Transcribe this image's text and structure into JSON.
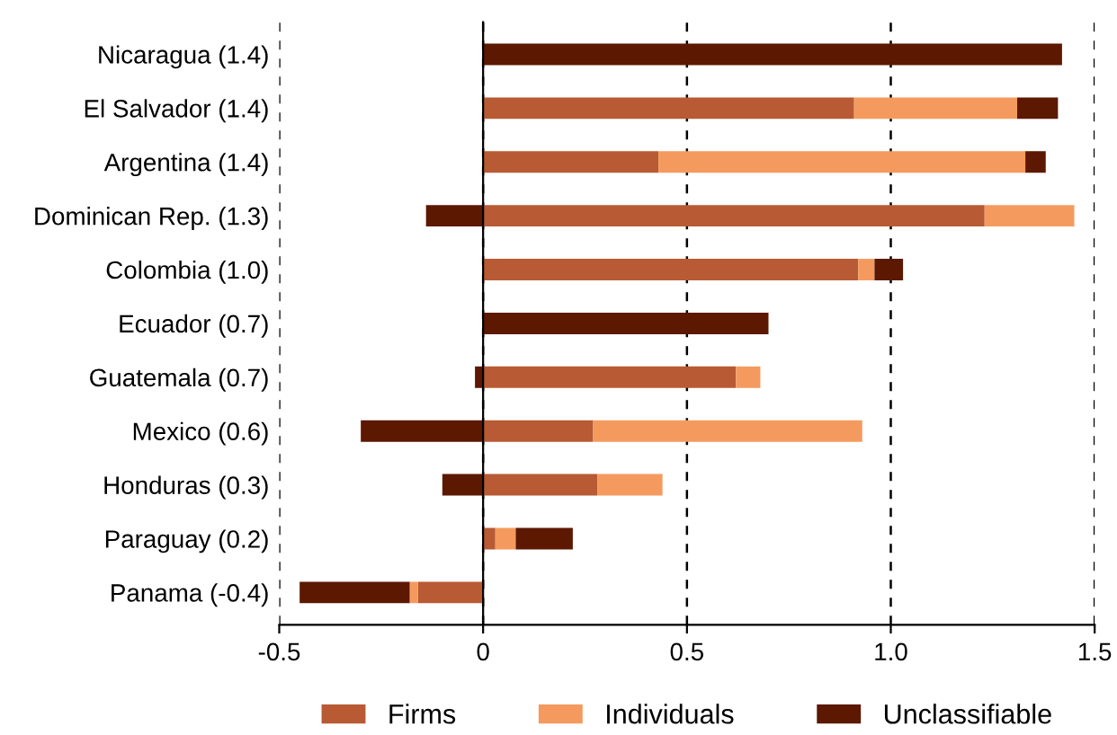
{
  "chart_data": {
    "type": "bar",
    "orientation": "horizontal",
    "stacked": true,
    "categories": [
      "Nicaragua (1.4)",
      "El Salvador (1.4)",
      "Argentina (1.4)",
      "Dominican Rep. (1.3)",
      "Colombia (1.0)",
      "Ecuador (0.7)",
      "Guatemala (0.7)",
      "Mexico (0.6)",
      "Honduras (0.3)",
      "Paraguay (0.2)",
      "Panama (-0.4)"
    ],
    "series": [
      {
        "name": "Firms",
        "color": "#b85a33",
        "values": [
          0,
          0.91,
          0.43,
          1.23,
          0.92,
          0,
          0.62,
          0.27,
          0.28,
          0.03,
          -0.16
        ]
      },
      {
        "name": "Individuals",
        "color": "#f59a5e",
        "values": [
          0,
          0.4,
          0.9,
          0.22,
          0.04,
          0,
          0.06,
          0.66,
          0.16,
          0.05,
          -0.02
        ]
      },
      {
        "name": "Unclassifiable",
        "color": "#5c1800",
        "values": [
          1.42,
          0.1,
          0.05,
          -0.14,
          0.07,
          0.7,
          -0.02,
          -0.3,
          -0.1,
          0.14,
          -0.27
        ]
      }
    ],
    "xlim": [
      -0.5,
      1.5
    ],
    "xticks": [
      -0.5,
      0,
      0.5,
      {
        "value": 1,
        "label": "1.0"
      },
      1.5
    ],
    "grid": "x",
    "legend": "bottom"
  }
}
